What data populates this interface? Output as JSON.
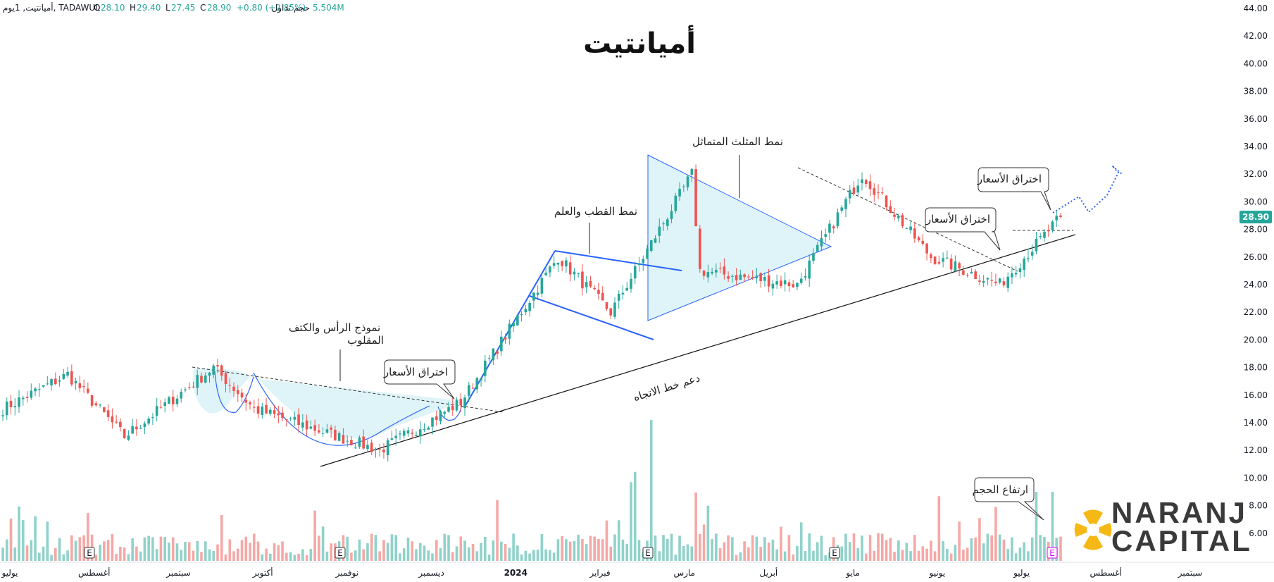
{
  "header": {
    "symbol": "أميانتيت, 1يوم, TADAWUL",
    "open_label": "O",
    "open": "28.10",
    "high_label": "H",
    "high": "29.40",
    "low_label": "L",
    "low": "27.45",
    "close_label": "C",
    "close": "28.90",
    "change": "+0.80 (+2.85%)",
    "volume_label": "حجم تداول",
    "volume": "5.504M"
  },
  "brand": {
    "line1": "NARANJ",
    "line2": "CAPITAL",
    "logo_icon": "naranj-logo-icon"
  },
  "colors": {
    "up": "#26a69a",
    "down": "#ef5350",
    "vol_up": "#8fd2c9",
    "vol_down": "#f5a8a6",
    "pattern": "#2962ff",
    "pattern_fill": "#dff4f8",
    "price_tag": "#26a69a"
  },
  "chart_data": {
    "type": "candlestick",
    "title": "أميانتيت",
    "price_axis": {
      "ylim": [
        4,
        44
      ],
      "ticks": [
        "44.00",
        "42.00",
        "40.00",
        "38.00",
        "36.00",
        "34.00",
        "32.00",
        "30.00",
        "28.00",
        "26.00",
        "24.00",
        "22.00",
        "20.00",
        "18.00",
        "16.00",
        "14.00",
        "12.00",
        "10.00",
        "8.00",
        "6.00"
      ],
      "current_price": "28.90"
    },
    "time_axis": [
      "يوليو",
      "أغسطس",
      "سبتمبر",
      "أكتوبر",
      "نوفمبر",
      "ديسمبر",
      "2024",
      "فبراير",
      "مارس",
      "أبريل",
      "مايو",
      "يونيو",
      "يوليو",
      "أغسطس",
      "سبتمبر"
    ],
    "key_price_points": [
      {
        "date": "يوليو 2023",
        "price": 15.0
      },
      {
        "date": "أغسطس 2023",
        "price": 17.5
      },
      {
        "date": "أغسطس 2023",
        "price": 13.0
      },
      {
        "date": "سبتمبر 2023",
        "price": 18.0
      },
      {
        "date": "أكتوبر 2023",
        "price": 15.0
      },
      {
        "date": "نوفمبر 2023",
        "price": 12.0
      },
      {
        "date": "ديسمبر 2023",
        "price": 15.5
      },
      {
        "date": "يناير 2024",
        "price": 26.0
      },
      {
        "date": "فبراير 2024",
        "price": 22.0
      },
      {
        "date": "مارس 2024",
        "price": 32.0
      },
      {
        "date": "مارس 2024",
        "price": 25.0
      },
      {
        "date": "أبريل 2024",
        "price": 24.0
      },
      {
        "date": "مايو 2024",
        "price": 32.0
      },
      {
        "date": "يونيو 2024",
        "price": 26.0
      },
      {
        "date": "يوليو 2024",
        "price": 24.0
      },
      {
        "date": "يوليو 2024",
        "price": 28.9
      }
    ],
    "annotations": {
      "inverse_hs": "نموذج الرأس والكتف المقلوب",
      "breakout_1": "اختراق الأسعار",
      "flag_pole": "نمط القطب والعلم",
      "sym_triangle": "نمط المثلث المتماثل",
      "breakout_2": "اختراق الأسعار",
      "breakout_3": "اختراق الأسعار",
      "trend_support": "دعم خط الاتجاه",
      "volume_rise": "ارتفاع الحجم"
    },
    "earnings_marker": "E",
    "grid": false,
    "legend": "none"
  }
}
